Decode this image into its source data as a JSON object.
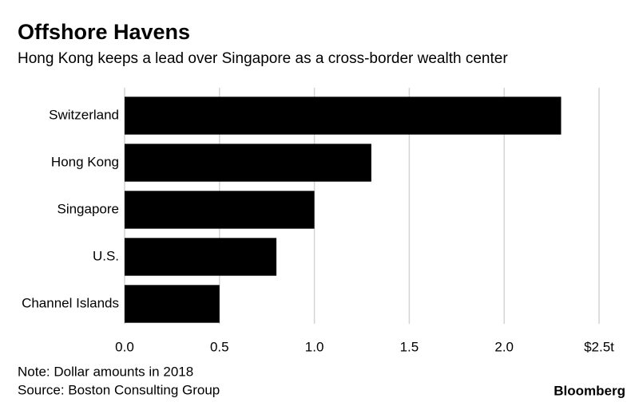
{
  "chart_data": {
    "type": "bar",
    "orientation": "horizontal",
    "title": "Offshore Havens",
    "subtitle": "Hong Kong keeps a lead over Singapore as a cross-border wealth center",
    "categories": [
      "Switzerland",
      "Hong Kong",
      "Singapore",
      "U.S.",
      "Channel Islands"
    ],
    "values": [
      2.3,
      1.3,
      1.0,
      0.8,
      0.5
    ],
    "color": "#000000",
    "xlim": [
      0,
      2.5
    ],
    "xticks": [
      {
        "value": 0,
        "label": "0.0"
      },
      0.5,
      {
        "value": 1,
        "label": "1.0"
      },
      1.5,
      {
        "value": 2,
        "label": "2.0"
      },
      {
        "value": 2.5,
        "label": "$2.5t"
      }
    ],
    "grid": true,
    "note": "Note: Dollar amounts in 2018",
    "source": "Source: Boston Consulting Group",
    "logo": "Bloomberg"
  }
}
